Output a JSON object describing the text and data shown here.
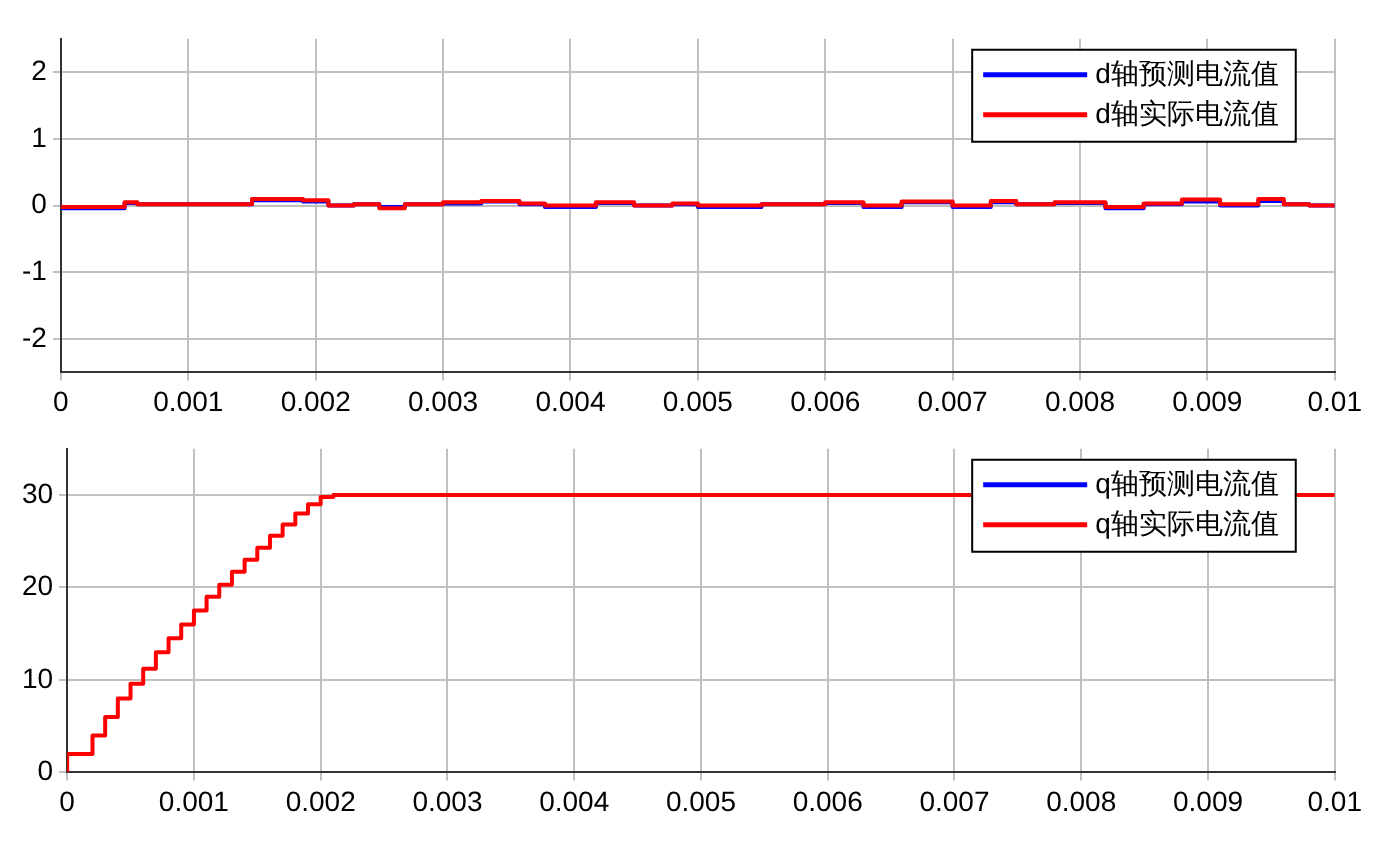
{
  "chart_data": [
    {
      "type": "step",
      "xlim": [
        0,
        0.01
      ],
      "xticks": [
        0,
        0.001,
        0.002,
        0.003,
        0.004,
        0.005,
        0.006,
        0.007,
        0.008,
        0.009,
        0.01
      ],
      "ylim": [
        -2.5,
        2.5
      ],
      "yticks": [
        -2,
        -1,
        0,
        1,
        2
      ],
      "grid": true,
      "legend": "top right",
      "x": [
        0,
        0.0005,
        0.0006,
        0.001,
        0.0015,
        0.0019,
        0.0021,
        0.0023,
        0.0025,
        0.0027,
        0.003,
        0.0033,
        0.0036,
        0.0038,
        0.0042,
        0.0045,
        0.0048,
        0.005,
        0.0055,
        0.006,
        0.0063,
        0.0066,
        0.007,
        0.0073,
        0.0075,
        0.0078,
        0.0082,
        0.0085,
        0.0088,
        0.0091,
        0.0094,
        0.0096,
        0.0098,
        0.01
      ],
      "series": [
        {
          "name": "d轴预测电流值",
          "color": "#0000ff",
          "values": [
            0,
            -0.04,
            0.04,
            0.02,
            0.02,
            0.08,
            0.06,
            0,
            0.02,
            -0.02,
            0.02,
            0.03,
            0.06,
            0.02,
            -0.02,
            0.04,
            0,
            0.02,
            -0.02,
            0.02,
            0.04,
            -0.02,
            0.05,
            -0.02,
            0.05,
            0.02,
            0.04,
            -0.04,
            0.02,
            0.06,
            0,
            0.07,
            0.02,
            0
          ]
        },
        {
          "name": "d轴实际电流值",
          "color": "#ff0000",
          "values": [
            0,
            -0.02,
            0.05,
            0.02,
            0.02,
            0.1,
            0.08,
            0,
            0.02,
            -0.04,
            0.02,
            0.05,
            0.07,
            0.03,
            0,
            0.05,
            0,
            0.03,
            0,
            0.02,
            0.05,
            0,
            0.06,
            0,
            0.07,
            0.02,
            0.05,
            -0.02,
            0.03,
            0.09,
            0.02,
            0.1,
            0.02,
            0
          ]
        }
      ]
    },
    {
      "type": "step",
      "xlim": [
        0,
        0.01
      ],
      "xticks": [
        0,
        0.001,
        0.002,
        0.003,
        0.004,
        0.005,
        0.006,
        0.007,
        0.008,
        0.009,
        0.01
      ],
      "ylim": [
        0,
        35
      ],
      "yticks": [
        0,
        10,
        20,
        30
      ],
      "grid": true,
      "legend": "top right",
      "x": [
        0,
        0.0002,
        0.0003,
        0.0004,
        0.0005,
        0.0006,
        0.0007,
        0.0008,
        0.0009,
        0.001,
        0.0011,
        0.0012,
        0.0013,
        0.0014,
        0.0015,
        0.0016,
        0.0017,
        0.0018,
        0.0019,
        0.002,
        0.0021,
        0.0023,
        0.01
      ],
      "series": [
        {
          "name": "q轴预测电流值",
          "color": "#0000ff",
          "values": [
            null,
            null,
            null,
            null,
            null,
            null,
            null,
            null,
            null,
            null,
            null,
            null,
            null,
            null,
            null,
            null,
            null,
            null,
            null,
            null,
            null,
            null,
            null
          ]
        },
        {
          "name": "q轴实际电流值",
          "color": "#ff0000",
          "values": [
            0,
            2,
            4,
            6,
            8,
            9.6,
            11.2,
            13,
            14.5,
            16,
            17.5,
            19,
            20.3,
            21.7,
            23,
            24.3,
            25.6,
            26.8,
            28,
            29,
            29.8,
            30,
            30
          ]
        }
      ]
    }
  ]
}
